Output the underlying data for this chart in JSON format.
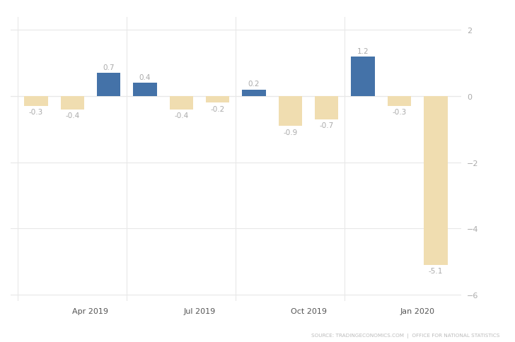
{
  "values": [
    -0.3,
    -0.4,
    0.7,
    0.4,
    -0.4,
    -0.2,
    0.2,
    -0.9,
    -0.7,
    1.2,
    -0.3,
    -5.1
  ],
  "x_positions": [
    0,
    1,
    2,
    3,
    4,
    5,
    6,
    7,
    8,
    9,
    10,
    11
  ],
  "positive_color": "#4472a8",
  "negative_color": "#f0ddb0",
  "ylim": [
    -6.2,
    2.4
  ],
  "yticks": [
    -6,
    -4,
    -2,
    0,
    2
  ],
  "xtick_positions": [
    0,
    3,
    6,
    9
  ],
  "xtick_labels": [
    "Apr 2019",
    "Jul 2019",
    "Oct 2019",
    "Jan 2020"
  ],
  "source_text": "SOURCE: TRADINGECONOMICS.COM  |  OFFICE FOR NATIONAL STATISTICS",
  "bar_width": 0.65,
  "background_color": "#ffffff",
  "grid_color": "#e8e8e8",
  "label_color": "#aaaaaa",
  "tick_label_color": "#555555",
  "label_fontsize": 7.5,
  "tick_fontsize": 8
}
